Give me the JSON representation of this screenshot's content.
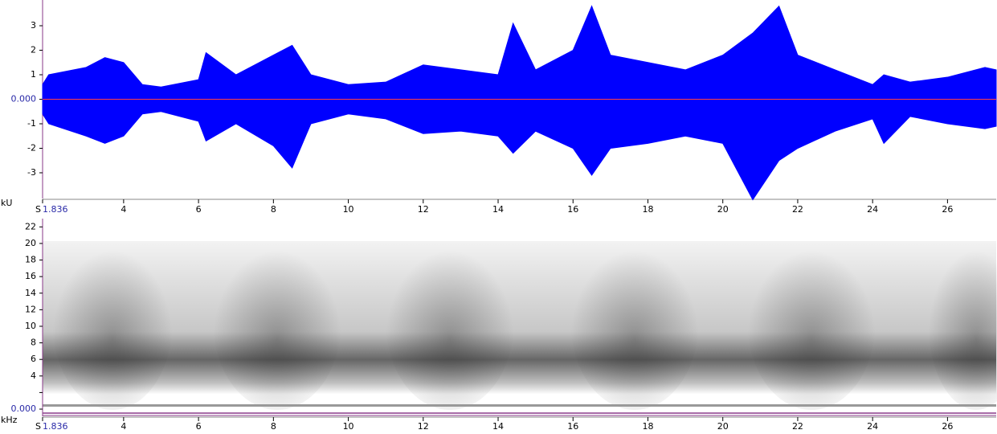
{
  "waveform": {
    "y_unit": "kU",
    "x_prefix": "S",
    "ylim": [
      -4.05,
      4.05
    ],
    "yticks": [
      -3,
      -2,
      -1,
      {
        "value": 0,
        "label": "0.000"
      },
      1,
      2,
      3
    ],
    "xlim": [
      1.836,
      27.3
    ],
    "xticks": [
      {
        "value": 1.836,
        "label": "1.836"
      },
      4,
      6,
      8,
      10,
      12,
      14,
      16,
      18,
      20,
      22,
      24,
      26
    ],
    "color": "#0000ff",
    "zero_line_color": "#ff4040",
    "x": [
      1.836,
      2,
      3,
      3.5,
      4,
      4.5,
      5,
      6,
      6.2,
      7,
      8,
      8.5,
      9,
      10,
      11,
      12,
      13,
      14,
      14.4,
      15,
      16,
      16.5,
      17,
      18,
      19,
      20,
      20.8,
      21.5,
      22,
      23,
      24,
      24.3,
      25,
      26,
      27,
      27.3
    ],
    "upper": [
      0.6,
      1.0,
      1.3,
      1.7,
      1.5,
      0.6,
      0.5,
      0.8,
      1.9,
      1.0,
      1.8,
      2.2,
      1.0,
      0.6,
      0.7,
      1.4,
      1.2,
      1.0,
      3.1,
      1.2,
      2.0,
      3.8,
      1.8,
      1.5,
      1.2,
      1.8,
      2.7,
      3.8,
      1.8,
      1.2,
      0.6,
      1.0,
      0.7,
      0.9,
      1.3,
      1.2
    ],
    "lower": [
      -0.6,
      -1.0,
      -1.5,
      -1.8,
      -1.5,
      -0.6,
      -0.5,
      -0.9,
      -1.7,
      -1.0,
      -1.9,
      -2.8,
      -1.0,
      -0.6,
      -0.8,
      -1.4,
      -1.3,
      -1.5,
      -2.2,
      -1.3,
      -2.0,
      -3.1,
      -2.0,
      -1.8,
      -1.5,
      -1.8,
      -4.1,
      -2.5,
      -2.0,
      -1.3,
      -0.8,
      -1.8,
      -0.7,
      -1.0,
      -1.2,
      -1.1
    ]
  },
  "spectrogram": {
    "y_unit": "kHz",
    "x_prefix": "S",
    "ylim": [
      -0.87,
      23
    ],
    "yticks": [
      {
        "value": 0,
        "label": "0.000"
      },
      {
        "value": 2,
        "label": null
      },
      4,
      6,
      8,
      10,
      12,
      14,
      16,
      18,
      20,
      22
    ],
    "xlim": [
      1.836,
      27.3
    ],
    "xticks": [
      {
        "value": 1.836,
        "label": "1.836"
      },
      4,
      6,
      8,
      10,
      12,
      14,
      16,
      18,
      20,
      22,
      24,
      26
    ]
  }
}
